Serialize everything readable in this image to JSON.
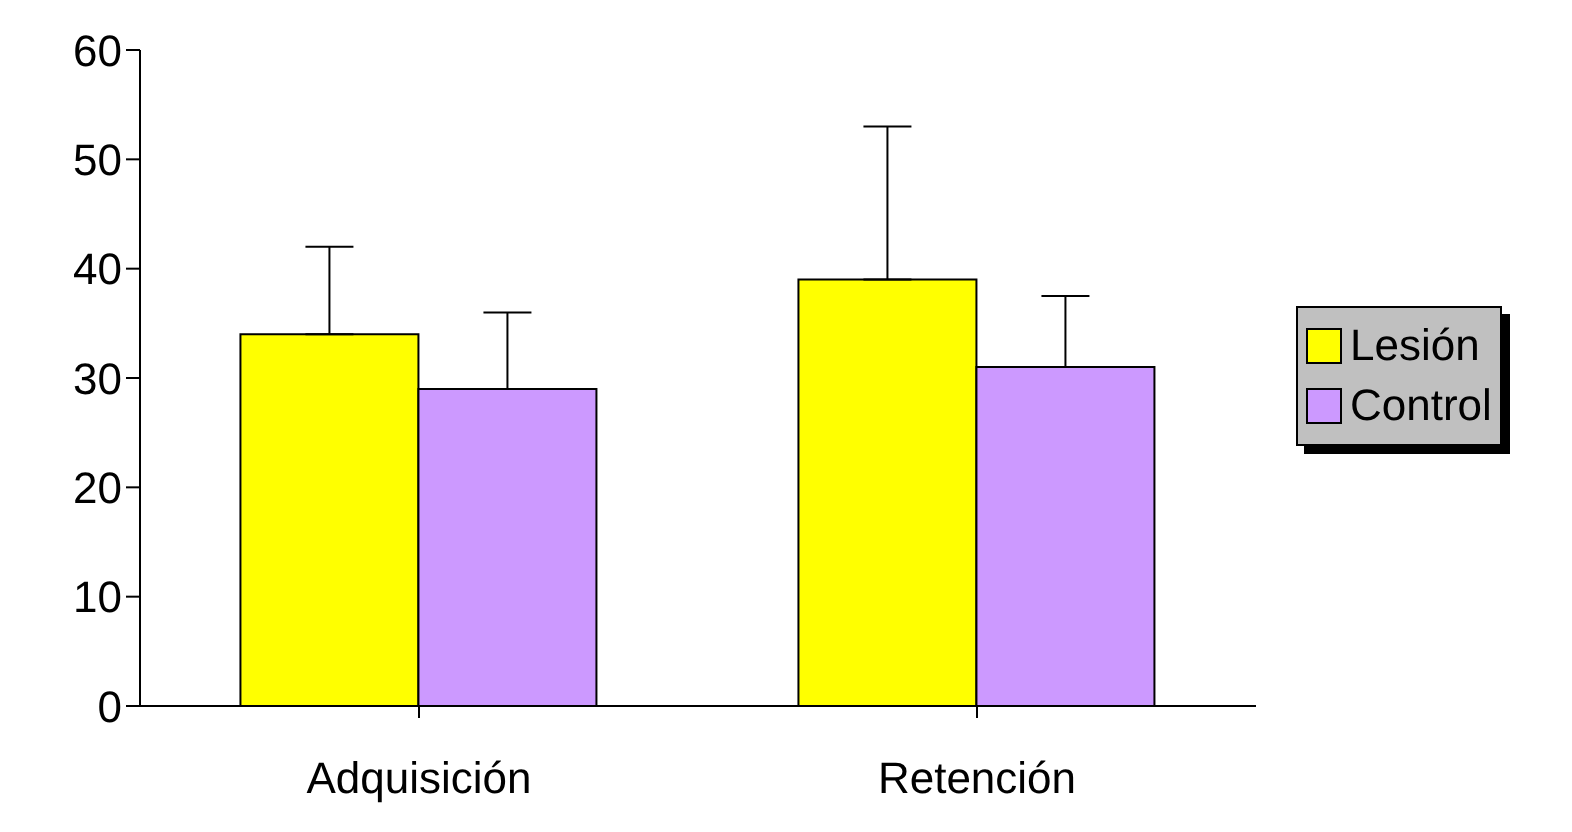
{
  "chart_data": {
    "type": "bar",
    "categories": [
      "Adquisición",
      "Retención"
    ],
    "series": [
      {
        "name": "Lesión",
        "color": "#ffff00",
        "values": [
          34,
          39
        ],
        "errors": [
          [
            34,
            42
          ],
          [
            39,
            53
          ]
        ]
      },
      {
        "name": "Control",
        "color": "#cc99ff",
        "values": [
          29,
          31
        ],
        "errors": [
          [
            29,
            36
          ],
          [
            31,
            37.5
          ]
        ]
      }
    ],
    "ylim": [
      0,
      60
    ],
    "yticks": [
      0,
      10,
      20,
      30,
      40,
      50,
      60
    ],
    "grid": false,
    "legend": "right"
  }
}
